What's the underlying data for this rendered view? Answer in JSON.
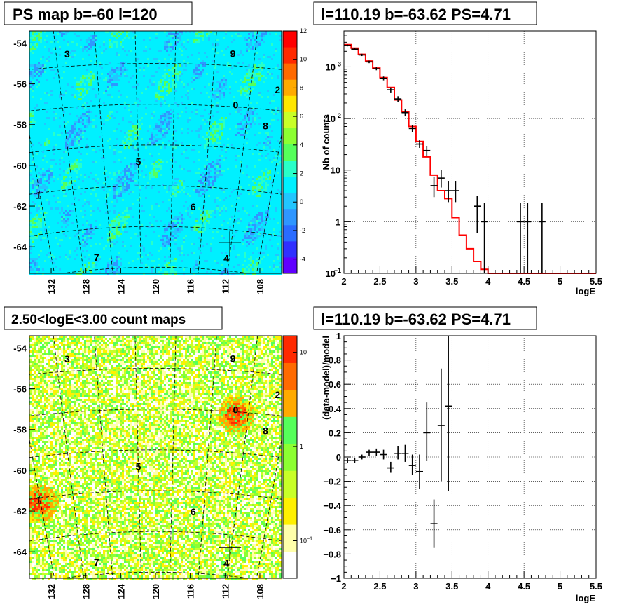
{
  "chart_data": [
    {
      "id": "ps-map",
      "type": "heatmap",
      "title": "PS map b=-60 l=120",
      "xlabel": "",
      "ylabel": "",
      "xlim": [
        134.5,
        105.5
      ],
      "ylim": [
        -65.3,
        -53.4
      ],
      "x_tick_labels": [
        "132",
        "128",
        "124",
        "120",
        "116",
        "112",
        "108"
      ],
      "x_tick_values": [
        132,
        128,
        124,
        120,
        116,
        112,
        108
      ],
      "y_tick_labels": [
        "-54",
        "-56",
        "-58",
        "-60",
        "-62",
        "-64"
      ],
      "y_tick_values": [
        -54,
        -56,
        -58,
        -60,
        -62,
        -64
      ],
      "colorbar": {
        "scale": "linear",
        "range": [
          -5,
          12
        ],
        "tick_values": [
          -4,
          -2,
          0,
          2,
          4,
          6,
          8,
          10,
          12
        ],
        "tick_labels": [
          "-4",
          "-2",
          "0",
          "2",
          "4",
          "6",
          "8",
          "10",
          "12"
        ]
      },
      "background_value": 1,
      "colors": [
        "#6000ff",
        "#3030ff",
        "#2a6cff",
        "#2f96ff",
        "#22c6ff",
        "#00f0ff",
        "#29ffc8",
        "#56ff5a",
        "#8cff32",
        "#c8ff28",
        "#ffe600",
        "#ffaa00",
        "#ff6a00",
        "#ff2a00",
        "#ff0000"
      ],
      "source_labels": [
        {
          "text": "3",
          "l": 128.9,
          "b": -54.4
        },
        {
          "text": "9",
          "l": 112.2,
          "b": -54.4
        },
        {
          "text": "2",
          "l": 107.2,
          "b": -56.0
        },
        {
          "text": "0",
          "l": 111.4,
          "b": -56.9
        },
        {
          "text": "8",
          "l": 107.9,
          "b": -57.8
        },
        {
          "text": "5",
          "l": 122.0,
          "b": -59.8
        },
        {
          "text": "1",
          "l": 134.2,
          "b": -61.1
        },
        {
          "text": "6",
          "l": 115.3,
          "b": -62.0
        },
        {
          "text": "7",
          "l": 128.0,
          "b": -64.4
        },
        {
          "text": "4",
          "l": 110.4,
          "b": -64.4
        }
      ],
      "marker": {
        "l": 110.19,
        "b": -63.62
      }
    },
    {
      "id": "spectrum",
      "type": "line",
      "title": "l=110.19 b=-63.62 PS=4.71",
      "xlabel": "logE",
      "ylabel": "Nb of counts",
      "xlim": [
        2,
        5.5
      ],
      "ylim": [
        0.1,
        5000
      ],
      "yscale": "log",
      "x_ticks": [
        "2",
        "2.5",
        "3",
        "3.5",
        "4",
        "4.5",
        "5",
        "5.5"
      ],
      "x_tick_values": [
        2,
        2.5,
        3,
        3.5,
        4,
        4.5,
        5,
        5.5
      ],
      "y_ticks": [
        {
          "value": 0.1,
          "base": "10",
          "exp": "−1"
        },
        {
          "value": 1,
          "base": "1",
          "exp": ""
        },
        {
          "value": 10,
          "base": "10",
          "exp": ""
        },
        {
          "value": 100,
          "base": "10",
          "exp": "2"
        },
        {
          "value": 1000,
          "base": "10",
          "exp": "3"
        }
      ],
      "grid": true,
      "series": [
        {
          "color": "#ff0000",
          "style": "step",
          "bin_edges": [
            2,
            2.1,
            2.2,
            2.3,
            2.4,
            2.5,
            2.6,
            2.7,
            2.8,
            2.9,
            3.0,
            3.1,
            3.2,
            3.3,
            3.4,
            3.5,
            3.6,
            3.7,
            3.8,
            3.9,
            4.0,
            5.5
          ],
          "values": [
            2700,
            2300,
            1750,
            1300,
            950,
            620,
            400,
            230,
            135,
            70,
            36,
            18,
            8,
            4,
            2.8,
            1.2,
            0.55,
            0.3,
            0.17,
            0.12,
            0.1
          ]
        },
        {
          "color": "#000000",
          "style": "errorbar",
          "points": [
            {
              "x": 2.05,
              "y": 2600,
              "lo": 2500,
              "hi": 2700
            },
            {
              "x": 2.15,
              "y": 2200,
              "lo": 2110,
              "hi": 2300
            },
            {
              "x": 2.25,
              "y": 1700,
              "lo": 1620,
              "hi": 1790
            },
            {
              "x": 2.35,
              "y": 1250,
              "lo": 1180,
              "hi": 1320
            },
            {
              "x": 2.45,
              "y": 920,
              "lo": 860,
              "hi": 980
            },
            {
              "x": 2.55,
              "y": 600,
              "lo": 550,
              "hi": 650
            },
            {
              "x": 2.65,
              "y": 360,
              "lo": 320,
              "hi": 400
            },
            {
              "x": 2.75,
              "y": 240,
              "lo": 210,
              "hi": 270
            },
            {
              "x": 2.85,
              "y": 130,
              "lo": 110,
              "hi": 150
            },
            {
              "x": 2.95,
              "y": 64,
              "lo": 55,
              "hi": 74
            },
            {
              "x": 3.05,
              "y": 32,
              "lo": 27,
              "hi": 38
            },
            {
              "x": 3.15,
              "y": 24,
              "lo": 19,
              "hi": 29
            },
            {
              "x": 3.25,
              "y": 5,
              "lo": 3,
              "hi": 7.5
            },
            {
              "x": 3.35,
              "y": 7,
              "lo": 4.6,
              "hi": 10
            },
            {
              "x": 3.45,
              "y": 4,
              "lo": 2.4,
              "hi": 6.2
            },
            {
              "x": 3.55,
              "y": 4,
              "lo": 2.4,
              "hi": 6.2
            },
            {
              "x": 3.85,
              "y": 2,
              "lo": 0.6,
              "hi": 3.2
            },
            {
              "x": 3.95,
              "y": 1,
              "lo": 0.1,
              "hi": 2.3
            },
            {
              "x": 4.45,
              "y": 1,
              "lo": 0.1,
              "hi": 2.3
            },
            {
              "x": 4.55,
              "y": 1,
              "lo": 0.1,
              "hi": 2.3
            },
            {
              "x": 4.75,
              "y": 1,
              "lo": 0.1,
              "hi": 2.3
            }
          ]
        }
      ]
    },
    {
      "id": "count-map",
      "type": "heatmap",
      "title": "2.50<logE<3.00 count maps",
      "xlabel": "",
      "ylabel": "",
      "xlim": [
        134.5,
        105.5
      ],
      "ylim": [
        -65.3,
        -53.4
      ],
      "x_tick_labels": [
        "132",
        "128",
        "124",
        "120",
        "116",
        "112",
        "108"
      ],
      "x_tick_values": [
        132,
        128,
        124,
        120,
        116,
        112,
        108
      ],
      "y_tick_labels": [
        "-54",
        "-56",
        "-58",
        "-60",
        "-62",
        "-64"
      ],
      "y_tick_values": [
        -54,
        -56,
        -58,
        -60,
        -62,
        -64
      ],
      "colorbar": {
        "scale": "log",
        "range": [
          0.04,
          15
        ],
        "tick_values": [
          0.1,
          1,
          10
        ],
        "tick_labels": [
          {
            "base": "10",
            "exp": "−1"
          },
          {
            "base": "1",
            "exp": ""
          },
          {
            "base": "10",
            "exp": ""
          }
        ]
      },
      "colors": [
        "#ffffff",
        "#ffffaa",
        "#fff000",
        "#c8ff28",
        "#8cff32",
        "#56ff5a",
        "#ffaa00",
        "#ff6a00",
        "#ff2a00"
      ],
      "hotspots": [
        {
          "l": 111.4,
          "b": -57.1,
          "strength": 1.0
        },
        {
          "l": 134.2,
          "b": -61.2,
          "strength": 1.0
        }
      ],
      "source_labels": [
        {
          "text": "3",
          "l": 128.9,
          "b": -54.4
        },
        {
          "text": "9",
          "l": 112.2,
          "b": -54.4
        },
        {
          "text": "2",
          "l": 107.2,
          "b": -56.0
        },
        {
          "text": "0",
          "l": 111.4,
          "b": -56.9
        },
        {
          "text": "8",
          "l": 107.9,
          "b": -57.8
        },
        {
          "text": "5",
          "l": 122.0,
          "b": -59.8
        },
        {
          "text": "1",
          "l": 134.2,
          "b": -61.1
        },
        {
          "text": "6",
          "l": 115.3,
          "b": -62.0
        },
        {
          "text": "7",
          "l": 128.0,
          "b": -64.4
        },
        {
          "text": "4",
          "l": 110.4,
          "b": -64.4
        }
      ],
      "marker": {
        "l": 110.19,
        "b": -63.62
      }
    },
    {
      "id": "residuals",
      "type": "scatter",
      "title": "l=110.19 b=-63.62 PS=4.71",
      "xlabel": "logE",
      "ylabel": "(data-model)/model",
      "xlim": [
        2,
        5.5
      ],
      "ylim": [
        -1,
        1
      ],
      "x_ticks": [
        "2",
        "2.5",
        "3",
        "3.5",
        "4",
        "4.5",
        "5",
        "5.5"
      ],
      "x_tick_values": [
        2,
        2.5,
        3,
        3.5,
        4,
        4.5,
        5,
        5.5
      ],
      "y_ticks": [
        "−1",
        "−0.8",
        "−0.6",
        "−0.4",
        "−0.2",
        "0",
        "0.2",
        "0.4",
        "0.6",
        "0.8",
        "1"
      ],
      "y_tick_values": [
        -1,
        -0.8,
        -0.6,
        -0.4,
        -0.2,
        0,
        0.2,
        0.4,
        0.6,
        0.8,
        1
      ],
      "grid": true,
      "series": [
        {
          "color": "#000000",
          "style": "errorbar",
          "points": [
            {
              "x": 2.05,
              "y": -0.03,
              "lo": -0.05,
              "hi": -0.01
            },
            {
              "x": 2.15,
              "y": -0.03,
              "lo": -0.05,
              "hi": -0.01
            },
            {
              "x": 2.25,
              "y": 0.0,
              "lo": -0.02,
              "hi": 0.02
            },
            {
              "x": 2.35,
              "y": 0.04,
              "lo": 0.01,
              "hi": 0.06
            },
            {
              "x": 2.45,
              "y": 0.04,
              "lo": 0.01,
              "hi": 0.07
            },
            {
              "x": 2.55,
              "y": 0.02,
              "lo": -0.02,
              "hi": 0.06
            },
            {
              "x": 2.65,
              "y": -0.09,
              "lo": -0.13,
              "hi": -0.04
            },
            {
              "x": 2.75,
              "y": 0.03,
              "lo": -0.02,
              "hi": 0.09
            },
            {
              "x": 2.85,
              "y": 0.03,
              "lo": -0.04,
              "hi": 0.1
            },
            {
              "x": 2.95,
              "y": -0.07,
              "lo": -0.15,
              "hi": 0.02
            },
            {
              "x": 3.05,
              "y": -0.12,
              "lo": -0.26,
              "hi": 0.02
            },
            {
              "x": 3.15,
              "y": 0.2,
              "lo": -0.03,
              "hi": 0.45
            },
            {
              "x": 3.25,
              "y": -0.55,
              "lo": -0.75,
              "hi": -0.35
            },
            {
              "x": 3.35,
              "y": 0.26,
              "lo": -0.2,
              "hi": 0.73
            },
            {
              "x": 3.45,
              "y": 0.42,
              "lo": -0.28,
              "hi": 1.0
            }
          ]
        }
      ]
    }
  ]
}
